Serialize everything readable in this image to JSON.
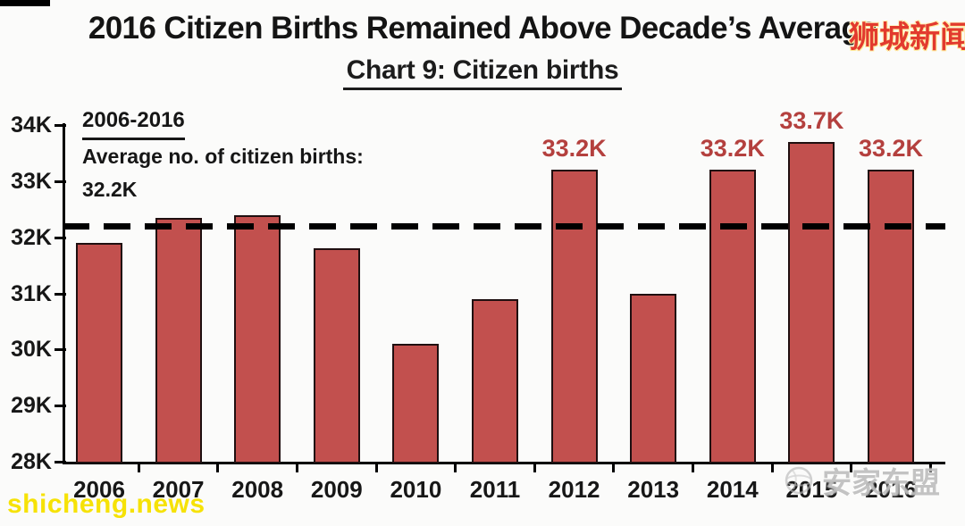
{
  "header": {
    "title": "2016 Citizen Births Remained Above Decade’s Average",
    "subtitle": "Chart 9: Citizen births"
  },
  "annotation": {
    "period": "2006-2016",
    "line1": "Average no. of citizen births:",
    "line2": "32.2K"
  },
  "watermarks": {
    "top_right": "狮城新闻",
    "bottom_left": "shicheng.news",
    "bottom_right": "安家东盟"
  },
  "chart_data": {
    "type": "bar",
    "title": "2016 Citizen Births Remained Above Decade’s Average",
    "subtitle": "Chart 9: Citizen births",
    "xlabel": "",
    "ylabel": "Citizen births",
    "categories": [
      "2006",
      "2007",
      "2008",
      "2009",
      "2010",
      "2011",
      "2012",
      "2013",
      "2014",
      "2015",
      "2016"
    ],
    "values": [
      31.9,
      32.35,
      32.4,
      31.8,
      30.1,
      30.9,
      33.2,
      31.0,
      33.2,
      33.7,
      33.2
    ],
    "bar_labels": [
      "",
      "",
      "",
      "",
      "",
      "",
      "33.2K",
      "",
      "33.2K",
      "33.7K",
      "33.2K"
    ],
    "ylim": [
      28,
      34
    ],
    "ytick_labels": [
      "34K",
      "33K",
      "32K",
      "31K",
      "30K",
      "29K",
      "28K"
    ],
    "grid": "off",
    "legend": "none",
    "average_line": {
      "value": 32.2,
      "label": "32.2K",
      "style": "dashed"
    },
    "colors": {
      "bar_fill": "#C2504E",
      "bar_border": "#1F0F10",
      "data_label": "#B4403E",
      "axis": "#000000",
      "average_line": "#000000"
    }
  }
}
